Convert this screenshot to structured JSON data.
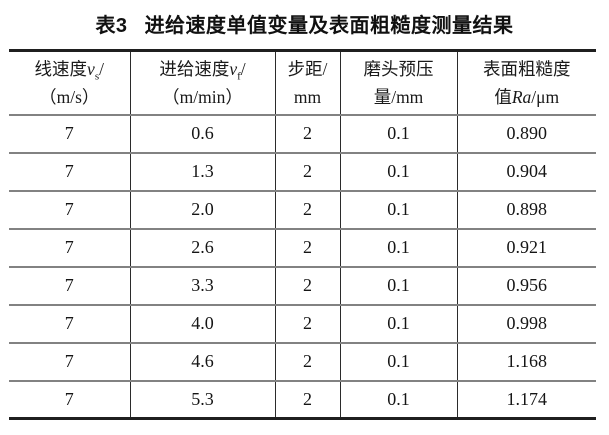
{
  "title": {
    "label": "表3",
    "text": "进给速度单值变量及表面粗糙度测量结果"
  },
  "table": {
    "headers_text": [
      "线速度vs/（m/s）",
      "进给速度vf/（m/min）",
      "步距/mm",
      "磨头预压量/mm",
      "表面粗糙度值Ra/μm"
    ],
    "columns": [
      {
        "name": "linear-speed",
        "line1": [
          {
            "t": "线速度"
          },
          {
            "t": "v",
            "i": true
          },
          {
            "t": "s",
            "sub": true
          },
          {
            "t": "/"
          }
        ],
        "line2": [
          {
            "t": "（m/s）"
          }
        ]
      },
      {
        "name": "feed-speed",
        "line1": [
          {
            "t": "进给速度"
          },
          {
            "t": "v",
            "i": true
          },
          {
            "t": "f",
            "sub": true
          },
          {
            "t": "/"
          }
        ],
        "line2": [
          {
            "t": "（m/min）"
          }
        ]
      },
      {
        "name": "step-distance",
        "line1": [
          {
            "t": "步距/"
          }
        ],
        "line2": [
          {
            "t": "mm"
          }
        ]
      },
      {
        "name": "head-preload",
        "line1": [
          {
            "t": "磨头预压"
          }
        ],
        "line2": [
          {
            "t": "量/mm"
          }
        ]
      },
      {
        "name": "surface-roughness",
        "line1": [
          {
            "t": "表面粗糙度"
          }
        ],
        "line2": [
          {
            "t": "值"
          },
          {
            "t": "Ra",
            "i": true
          },
          {
            "t": "/μm"
          }
        ]
      }
    ],
    "rows": [
      [
        "7",
        "0.6",
        "2",
        "0.1",
        "0.890"
      ],
      [
        "7",
        "1.3",
        "2",
        "0.1",
        "0.904"
      ],
      [
        "7",
        "2.0",
        "2",
        "0.1",
        "0.898"
      ],
      [
        "7",
        "2.6",
        "2",
        "0.1",
        "0.921"
      ],
      [
        "7",
        "3.3",
        "2",
        "0.1",
        "0.956"
      ],
      [
        "7",
        "4.0",
        "2",
        "0.1",
        "0.998"
      ],
      [
        "7",
        "4.6",
        "2",
        "0.1",
        "1.168"
      ],
      [
        "7",
        "5.3",
        "2",
        "0.1",
        "1.174"
      ]
    ]
  },
  "colors": {
    "text": "#1a1a1a",
    "rule_heavy": "#1f1f1f",
    "rule_light": "#828282"
  }
}
